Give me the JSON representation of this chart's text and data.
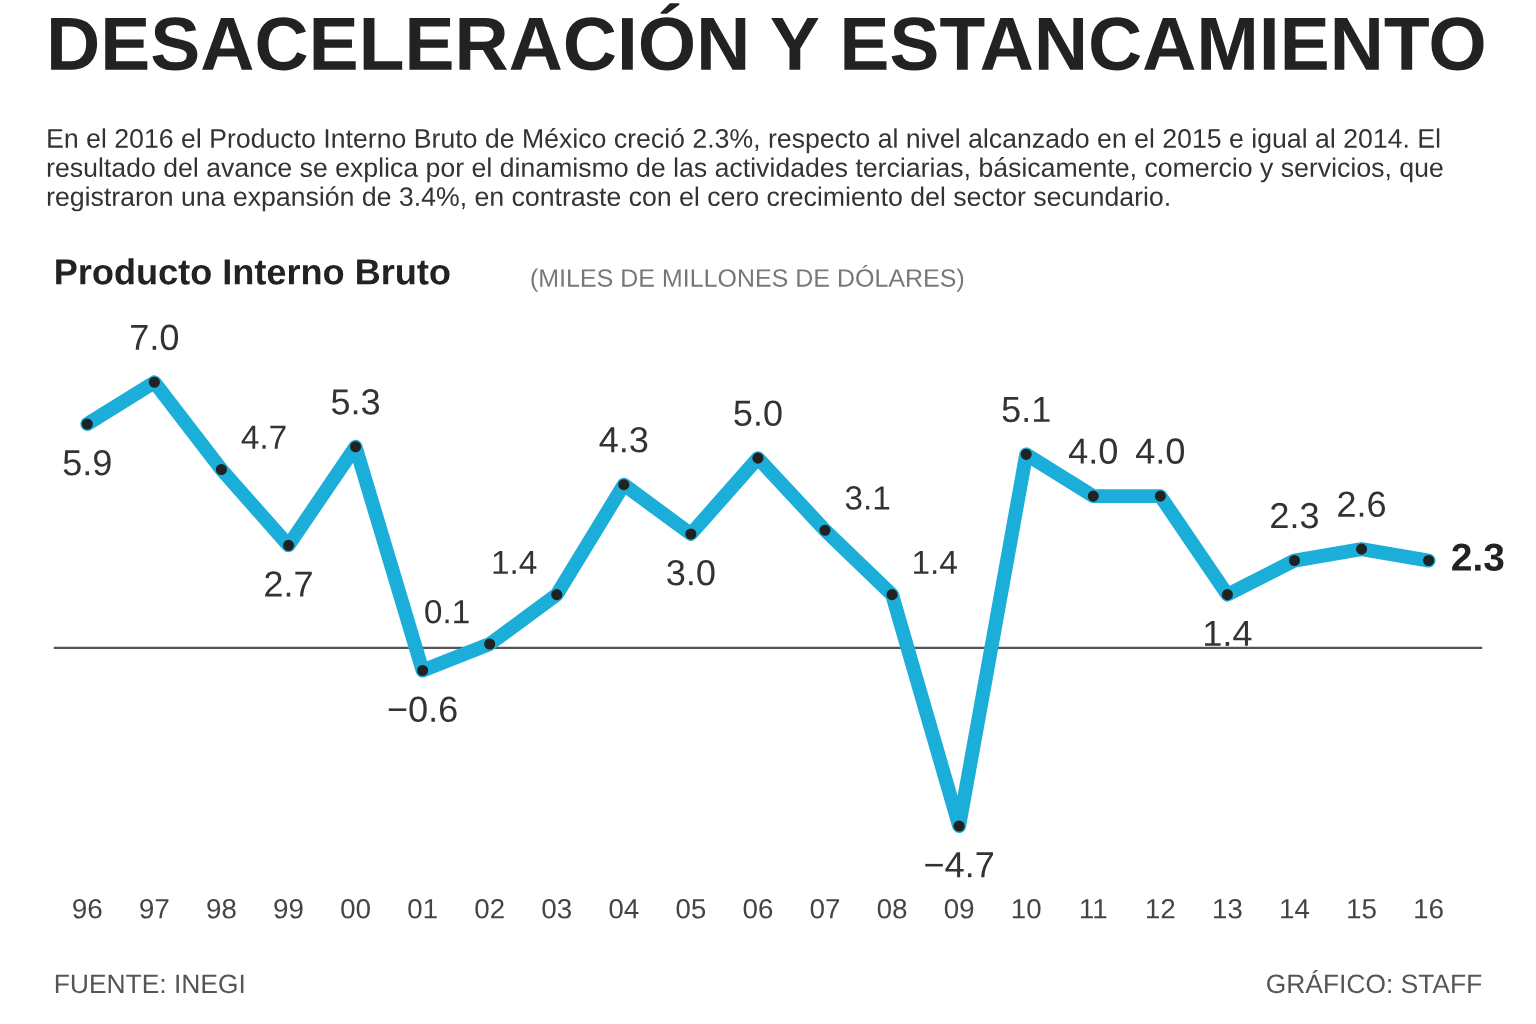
{
  "chart_data": {
    "type": "line",
    "title": "DESACELERACIÓN Y ESTANCAMIENTO",
    "subtitle": "En el 2016 el Producto Interno Bruto de México creció 2.3%, respecto al nivel alcanzado en el 2015 e igual al 2014. El resultado del avance se explica por el dinamismo de las actividades terciarias, básicamente, comercio y servicios, que registraron una expansión de 3.4%, en contraste con el cero crecimiento del sector secundario.",
    "annotations": [
      "Producto Interno Bruto",
      "(MILES DE MILLONES DE DÓLARES)",
      "FUENTE: INEGI",
      "GRÁFICO: STAFF"
    ],
    "categories": [
      "96",
      "97",
      "98",
      "99",
      "00",
      "01",
      "02",
      "03",
      "04",
      "05",
      "06",
      "07",
      "08",
      "09",
      "10",
      "11",
      "12",
      "13",
      "14",
      "15",
      "16"
    ],
    "series": [
      {
        "color": "#1aaed8",
        "values": [
          5.9,
          7.0,
          4.7,
          2.7,
          5.3,
          -0.6,
          0.1,
          1.4,
          4.3,
          3.0,
          5.0,
          3.1,
          1.4,
          -4.7,
          5.1,
          4.0,
          4.0,
          1.4,
          2.3,
          2.6,
          2.3
        ],
        "value_labels": [
          "5.9",
          "7.0",
          "4.7",
          "2.7",
          "5.3",
          "−0.6",
          "0.1",
          "1.4",
          "4.3",
          "3.0",
          "5.0",
          "3.1",
          "1.4",
          "−4.7",
          "5.1",
          "4.0",
          "4.0",
          "1.4",
          "2.3",
          "2.6",
          "2.3"
        ]
      }
    ],
    "tick_labels": "x",
    "marker": "circle",
    "line_style": "solid",
    "grid": false,
    "legend": false,
    "ref_lines": [
      {
        "axis": "y",
        "value": 0,
        "color": "#555555"
      }
    ]
  }
}
